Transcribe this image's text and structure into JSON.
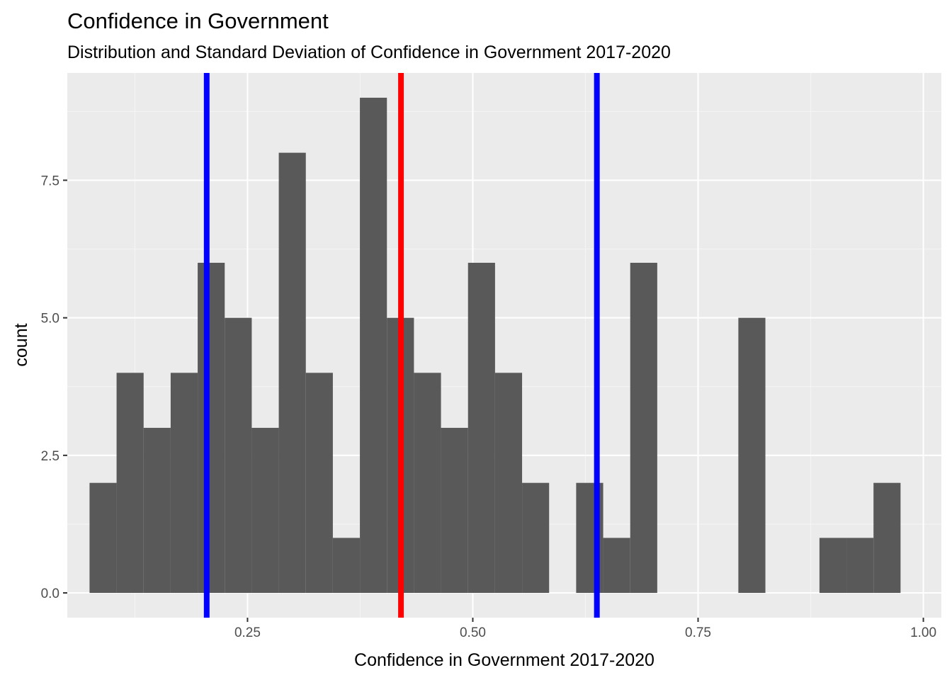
{
  "chart_data": {
    "type": "bar",
    "title": "Confidence in Government",
    "subtitle": "Distribution and Standard Deviation of Confidence in Government 2017-2020",
    "xlabel": "Confidence in Government 2017-2020",
    "ylabel": "count",
    "xlim": [
      0.05,
      1.02
    ],
    "ylim": [
      -0.45,
      9.45
    ],
    "x_ticks": [
      0.25,
      0.5,
      0.75,
      1.0
    ],
    "x_tick_labels": [
      "0.25",
      "0.50",
      "0.75",
      "1.00"
    ],
    "y_ticks": [
      0,
      2.5,
      5,
      7.5
    ],
    "y_tick_labels": [
      "0.0",
      "2.5",
      "5.0",
      "7.5"
    ],
    "bin_width": 0.03,
    "bins": [
      {
        "x_min": 0.0747,
        "x_max": 0.1047,
        "count": 2
      },
      {
        "x_min": 0.1047,
        "x_max": 0.1347,
        "count": 4
      },
      {
        "x_min": 0.1347,
        "x_max": 0.1647,
        "count": 3
      },
      {
        "x_min": 0.1647,
        "x_max": 0.1947,
        "count": 4
      },
      {
        "x_min": 0.1947,
        "x_max": 0.2247,
        "count": 6
      },
      {
        "x_min": 0.2247,
        "x_max": 0.2547,
        "count": 5
      },
      {
        "x_min": 0.2547,
        "x_max": 0.2847,
        "count": 3
      },
      {
        "x_min": 0.2847,
        "x_max": 0.3147,
        "count": 8
      },
      {
        "x_min": 0.3147,
        "x_max": 0.3447,
        "count": 4
      },
      {
        "x_min": 0.3447,
        "x_max": 0.3747,
        "count": 1
      },
      {
        "x_min": 0.3747,
        "x_max": 0.4047,
        "count": 9
      },
      {
        "x_min": 0.4047,
        "x_max": 0.4347,
        "count": 5
      },
      {
        "x_min": 0.4347,
        "x_max": 0.4647,
        "count": 4
      },
      {
        "x_min": 0.4647,
        "x_max": 0.4947,
        "count": 3
      },
      {
        "x_min": 0.4947,
        "x_max": 0.5247,
        "count": 6
      },
      {
        "x_min": 0.5247,
        "x_max": 0.5547,
        "count": 4
      },
      {
        "x_min": 0.5547,
        "x_max": 0.5847,
        "count": 2
      },
      {
        "x_min": 0.5847,
        "x_max": 0.6147,
        "count": 0
      },
      {
        "x_min": 0.6147,
        "x_max": 0.6447,
        "count": 2
      },
      {
        "x_min": 0.6447,
        "x_max": 0.6747,
        "count": 1
      },
      {
        "x_min": 0.6747,
        "x_max": 0.7047,
        "count": 6
      },
      {
        "x_min": 0.7047,
        "x_max": 0.7347,
        "count": 0
      },
      {
        "x_min": 0.7347,
        "x_max": 0.7647,
        "count": 0
      },
      {
        "x_min": 0.7647,
        "x_max": 0.7947,
        "count": 0
      },
      {
        "x_min": 0.7947,
        "x_max": 0.8247,
        "count": 5
      },
      {
        "x_min": 0.8247,
        "x_max": 0.8547,
        "count": 0
      },
      {
        "x_min": 0.8547,
        "x_max": 0.8847,
        "count": 0
      },
      {
        "x_min": 0.8847,
        "x_max": 0.9147,
        "count": 1
      },
      {
        "x_min": 0.9147,
        "x_max": 0.9447,
        "count": 1
      },
      {
        "x_min": 0.9447,
        "x_max": 0.9747,
        "count": 2
      }
    ],
    "reference_lines": [
      {
        "x": 0.2047,
        "color": "#0000FF"
      },
      {
        "x": 0.4203,
        "color": "#FF0000"
      },
      {
        "x": 0.6377,
        "color": "#0000FF"
      }
    ],
    "colors": {
      "bar": "#595959",
      "panel": "#EBEBEB",
      "grid_major": "#FFFFFF",
      "grid_minor": "#F5F5F5",
      "tick": "#333333"
    },
    "grid": true
  }
}
